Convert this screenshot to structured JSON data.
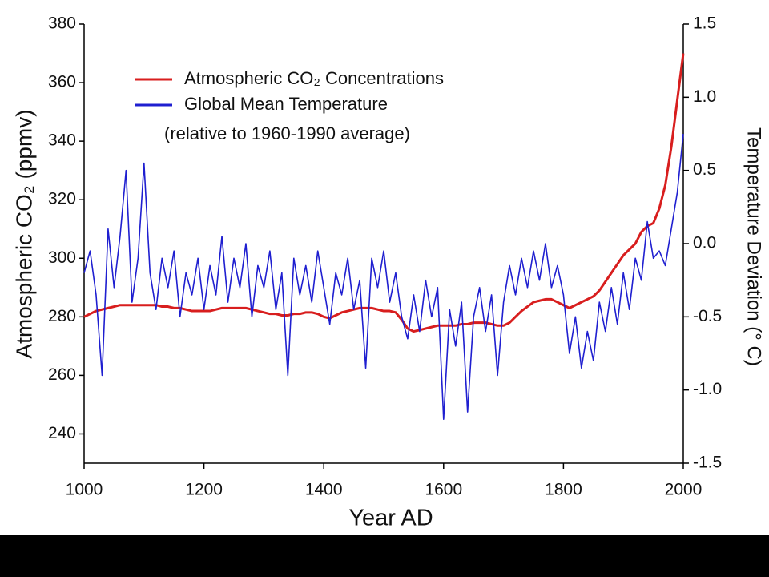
{
  "chart_data": {
    "type": "line",
    "xlabel": "Year AD",
    "ylabel": "Atmospheric CO₂  (ppmv)",
    "y2label": "Temperature Deviation (° C)",
    "annotation": "(relative to 1960-1990 average)",
    "legend": "upper left",
    "xlim": [
      1000,
      2000
    ],
    "xticks": [
      1000,
      1200,
      1400,
      1600,
      1800,
      2000
    ],
    "ylim": [
      230,
      380
    ],
    "yticks": [
      240,
      260,
      280,
      300,
      320,
      340,
      360,
      380
    ],
    "y2lim": [
      -1.5,
      1.5
    ],
    "y2ticks": [
      1.5,
      {
        "value": 1.0,
        "label": "1.0"
      },
      0.5,
      {
        "value": 0.0,
        "label": "0.0"
      },
      -0.5,
      {
        "value": -1.0,
        "label": "-1.0"
      },
      -1.5
    ],
    "x": [
      1000,
      1010,
      1020,
      1030,
      1040,
      1050,
      1060,
      1070,
      1080,
      1090,
      1100,
      1110,
      1120,
      1130,
      1140,
      1150,
      1160,
      1170,
      1180,
      1190,
      1200,
      1210,
      1220,
      1230,
      1240,
      1250,
      1260,
      1270,
      1280,
      1290,
      1300,
      1310,
      1320,
      1330,
      1340,
      1350,
      1360,
      1370,
      1380,
      1390,
      1400,
      1410,
      1420,
      1430,
      1440,
      1450,
      1460,
      1470,
      1480,
      1490,
      1500,
      1510,
      1520,
      1530,
      1540,
      1550,
      1560,
      1570,
      1580,
      1590,
      1600,
      1610,
      1620,
      1630,
      1640,
      1650,
      1660,
      1670,
      1680,
      1690,
      1700,
      1710,
      1720,
      1730,
      1740,
      1750,
      1760,
      1770,
      1780,
      1790,
      1800,
      1810,
      1820,
      1830,
      1840,
      1850,
      1860,
      1870,
      1880,
      1890,
      1900,
      1910,
      1920,
      1930,
      1940,
      1950,
      1960,
      1970,
      1980,
      1990,
      2000
    ],
    "series": [
      {
        "name": "Atmospheric CO₂    Concentrations",
        "color": "#d81e1e",
        "axis": "y",
        "values": [
          280,
          281,
          282,
          282.5,
          283,
          283.5,
          284,
          284,
          284,
          284,
          284,
          284,
          284,
          283.5,
          283.5,
          283,
          283,
          282.5,
          282,
          282,
          282,
          282,
          282.5,
          283,
          283,
          283,
          283,
          283,
          282.5,
          282,
          281.5,
          281,
          281,
          280.5,
          280.5,
          281,
          281,
          281.5,
          281.5,
          281,
          280,
          279.5,
          280.5,
          281.5,
          282,
          282.5,
          283,
          283,
          283,
          282.5,
          282,
          282,
          281.5,
          279,
          276,
          275,
          275.5,
          276,
          276.5,
          277,
          277,
          277,
          277,
          277.5,
          277.5,
          278,
          278,
          278,
          277.5,
          277,
          277,
          278,
          280,
          282,
          283.5,
          285,
          285.5,
          286,
          286,
          285,
          284,
          283,
          284,
          285,
          286,
          287,
          289,
          292,
          295,
          298,
          301,
          303,
          305,
          309,
          311,
          312,
          317,
          325,
          338,
          354,
          370
        ]
      },
      {
        "name": "Global Mean Temperature",
        "color": "#1f1fd0",
        "axis": "y2",
        "values": [
          -0.2,
          -0.05,
          -0.35,
          -0.9,
          0.1,
          -0.3,
          0.05,
          0.5,
          -0.4,
          -0.1,
          0.55,
          -0.2,
          -0.45,
          -0.1,
          -0.3,
          -0.05,
          -0.5,
          -0.2,
          -0.35,
          -0.1,
          -0.45,
          -0.15,
          -0.35,
          0.05,
          -0.4,
          -0.1,
          -0.3,
          0.0,
          -0.5,
          -0.15,
          -0.3,
          -0.05,
          -0.45,
          -0.2,
          -0.9,
          -0.1,
          -0.35,
          -0.15,
          -0.4,
          -0.05,
          -0.3,
          -0.55,
          -0.2,
          -0.35,
          -0.1,
          -0.45,
          -0.25,
          -0.85,
          -0.1,
          -0.3,
          -0.05,
          -0.4,
          -0.2,
          -0.5,
          -0.65,
          -0.35,
          -0.6,
          -0.25,
          -0.5,
          -0.3,
          -1.2,
          -0.45,
          -0.7,
          -0.4,
          -1.15,
          -0.5,
          -0.3,
          -0.6,
          -0.35,
          -0.9,
          -0.4,
          -0.15,
          -0.35,
          -0.1,
          -0.3,
          -0.05,
          -0.25,
          0.0,
          -0.3,
          -0.15,
          -0.35,
          -0.75,
          -0.5,
          -0.85,
          -0.6,
          -0.8,
          -0.4,
          -0.6,
          -0.3,
          -0.55,
          -0.2,
          -0.45,
          -0.1,
          -0.25,
          0.15,
          -0.1,
          -0.05,
          -0.15,
          0.1,
          0.35,
          0.75
        ]
      }
    ]
  }
}
